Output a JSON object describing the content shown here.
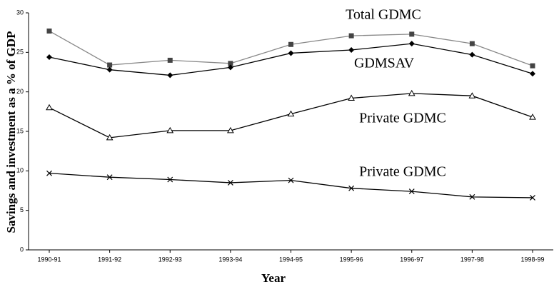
{
  "chart_data": {
    "type": "line",
    "xlabel": "Year",
    "ylabel": "Savings and investment as a % of GDP",
    "categories": [
      "1990-91",
      "1991-92",
      "1992-93",
      "1993-94",
      "1994-95",
      "1995-96",
      "1996-97",
      "1997-98",
      "1998-99"
    ],
    "ylim": [
      0,
      30
    ],
    "yticks": [
      0,
      5,
      10,
      15,
      20,
      25,
      30
    ],
    "grid": false,
    "series": [
      {
        "name": "Total GDMC",
        "color": "#888888",
        "marker": "square",
        "marker_color": "#444444",
        "values": [
          27.7,
          23.4,
          24.0,
          23.6,
          26.0,
          27.1,
          27.3,
          26.1,
          23.3
        ]
      },
      {
        "name": "GDMSAV",
        "color": "#000000",
        "marker": "diamond",
        "marker_color": "#000000",
        "values": [
          24.4,
          22.8,
          22.1,
          23.1,
          24.9,
          25.3,
          26.1,
          24.7,
          22.3
        ]
      },
      {
        "name": "Private GDMC",
        "color": "#000000",
        "marker": "triangle",
        "marker_color": "#000000",
        "values": [
          18.0,
          14.2,
          15.1,
          15.1,
          17.2,
          19.2,
          19.8,
          19.5,
          16.8
        ]
      },
      {
        "name": "Private GDMC",
        "color": "#000000",
        "marker": "cross",
        "marker_color": "#000000",
        "values": [
          9.7,
          9.2,
          8.9,
          8.5,
          8.8,
          7.8,
          7.4,
          6.7,
          6.6
        ]
      }
    ]
  }
}
